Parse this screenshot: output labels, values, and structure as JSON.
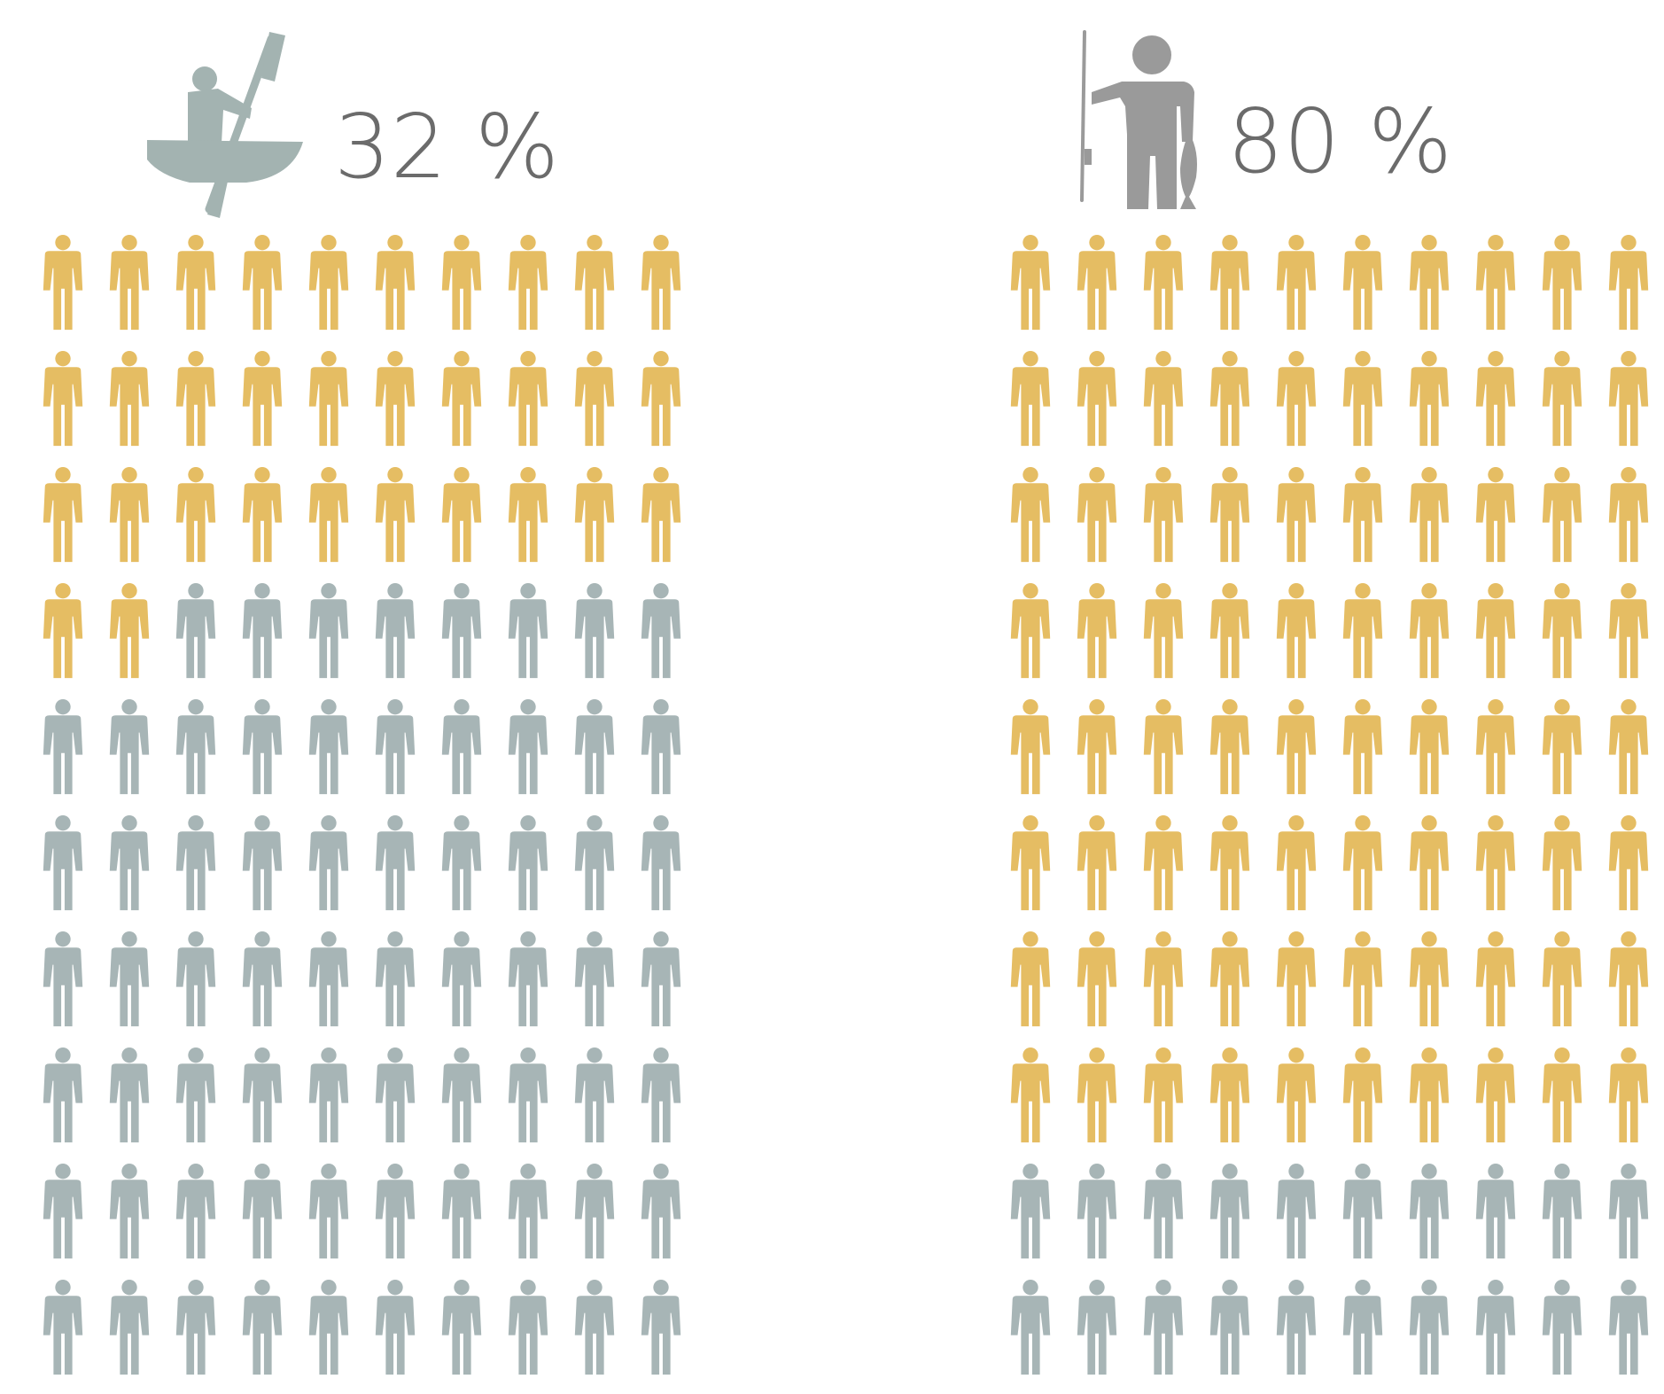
{
  "colors": {
    "highlight": "#E5BD63",
    "base": "#A7B5B6",
    "kayak_icon": "#A3B3B1",
    "fisher_icon": "#9A9A9A",
    "label_text": "#6B6B6B"
  },
  "chart_data": [
    {
      "type": "isotype",
      "icon": "kayaker-icon",
      "label": "32 %",
      "value": 32,
      "total": 100,
      "rows": 10,
      "cols": 10
    },
    {
      "type": "isotype",
      "icon": "fisherman-icon",
      "label": "80 %",
      "value": 80,
      "total": 100,
      "rows": 10,
      "cols": 10
    }
  ]
}
